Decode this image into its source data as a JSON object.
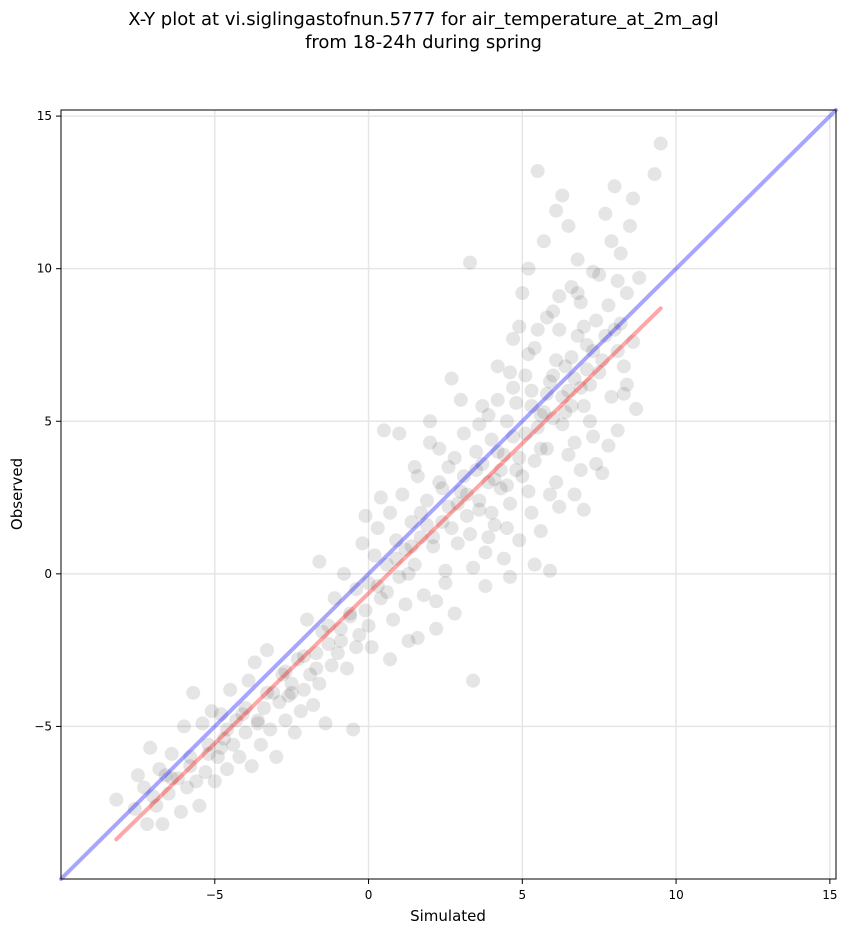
{
  "chart_data": {
    "type": "scatter",
    "title_line1": "X-Y plot at vi.siglingastofnun.5777 for air_temperature_at_2m_agl",
    "title_line2": "from 18-24h during spring",
    "xlabel": "Simulated",
    "ylabel": "Observed",
    "xlim": [
      -10,
      15.2
    ],
    "ylim": [
      -10,
      15.2
    ],
    "xticks": [
      {
        "value": -5,
        "label": "−5"
      },
      {
        "value": 0,
        "label": "0"
      },
      {
        "value": 5,
        "label": "5"
      },
      {
        "value": 10,
        "label": "10"
      },
      {
        "value": 15,
        "label": "15"
      }
    ],
    "yticks": [
      {
        "value": -5,
        "label": "−5"
      },
      {
        "value": 0,
        "label": "0"
      },
      {
        "value": 5,
        "label": "5"
      },
      {
        "value": 10,
        "label": "10"
      },
      {
        "value": 15,
        "label": "15"
      }
    ],
    "grid": true,
    "point_color": "#000000",
    "point_opacity": 0.1,
    "reference_line": {
      "color": "#0000ff",
      "opacity": 0.35,
      "x": [
        -10,
        15.2
      ],
      "y": [
        -10,
        15.2
      ]
    },
    "fit_line": {
      "color": "#ff0000",
      "opacity": 0.35,
      "x": [
        -8.2,
        9.5
      ],
      "y": [
        -8.7,
        8.7
      ]
    },
    "points": [
      [
        -8.2,
        -7.4
      ],
      [
        -7.6,
        -7.7
      ],
      [
        -7.5,
        -6.6
      ],
      [
        -7.2,
        -8.2
      ],
      [
        -7.3,
        -7.0
      ],
      [
        -7.1,
        -5.7
      ],
      [
        -6.9,
        -7.6
      ],
      [
        -6.8,
        -6.4
      ],
      [
        -6.7,
        -8.2
      ],
      [
        -6.6,
        -6.6
      ],
      [
        -6.5,
        -7.2
      ],
      [
        -6.4,
        -5.9
      ],
      [
        -6.2,
        -6.7
      ],
      [
        -6.1,
        -7.8
      ],
      [
        -6.0,
        -5.0
      ],
      [
        -5.9,
        -7.0
      ],
      [
        -5.8,
        -6.3
      ],
      [
        -5.7,
        -3.9
      ],
      [
        -5.6,
        -6.8
      ],
      [
        -5.5,
        -7.6
      ],
      [
        -5.4,
        -4.9
      ],
      [
        -5.3,
        -6.5
      ],
      [
        -5.2,
        -5.9
      ],
      [
        -5.1,
        -4.5
      ],
      [
        -5.0,
        -6.8
      ],
      [
        -4.9,
        -6.0
      ],
      [
        -4.8,
        -4.6
      ],
      [
        -4.7,
        -5.4
      ],
      [
        -4.6,
        -6.4
      ],
      [
        -4.5,
        -3.8
      ],
      [
        -4.4,
        -5.6
      ],
      [
        -4.3,
        -4.8
      ],
      [
        -4.2,
        -6.0
      ],
      [
        -4.1,
        -4.6
      ],
      [
        -4.0,
        -5.2
      ],
      [
        -3.9,
        -3.5
      ],
      [
        -3.8,
        -6.3
      ],
      [
        -3.7,
        -2.9
      ],
      [
        -3.6,
        -4.8
      ],
      [
        -3.5,
        -5.6
      ],
      [
        -3.4,
        -4.4
      ],
      [
        -3.3,
        -2.5
      ],
      [
        -3.2,
        -5.1
      ],
      [
        -3.1,
        -3.9
      ],
      [
        -3.0,
        -6.0
      ],
      [
        -2.9,
        -4.2
      ],
      [
        -2.8,
        -3.3
      ],
      [
        -2.7,
        -4.8
      ],
      [
        -2.6,
        -4.0
      ],
      [
        -2.5,
        -3.6
      ],
      [
        -2.4,
        -5.2
      ],
      [
        -2.3,
        -2.8
      ],
      [
        -2.2,
        -4.5
      ],
      [
        -2.1,
        -3.8
      ],
      [
        -2.0,
        -1.5
      ],
      [
        -1.9,
        -3.3
      ],
      [
        -1.8,
        -4.3
      ],
      [
        -1.7,
        -2.6
      ],
      [
        -1.6,
        -3.6
      ],
      [
        -1.5,
        -1.9
      ],
      [
        -1.4,
        -4.9
      ],
      [
        -1.3,
        -2.3
      ],
      [
        -1.2,
        -3.0
      ],
      [
        -1.1,
        -0.8
      ],
      [
        -1.0,
        -2.6
      ],
      [
        -0.9,
        -1.8
      ],
      [
        -0.8,
        0.0
      ],
      [
        -0.7,
        -3.1
      ],
      [
        -0.6,
        -1.3
      ],
      [
        -0.5,
        -5.1
      ],
      [
        -0.4,
        -0.5
      ],
      [
        -0.3,
        -2.0
      ],
      [
        -0.2,
        1.0
      ],
      [
        -0.1,
        -1.2
      ],
      [
        0.0,
        -0.3
      ],
      [
        0.1,
        -2.4
      ],
      [
        0.2,
        0.6
      ],
      [
        0.3,
        1.5
      ],
      [
        0.4,
        -0.8
      ],
      [
        0.5,
        4.7
      ],
      [
        0.6,
        0.3
      ],
      [
        0.7,
        2.0
      ],
      [
        0.8,
        -1.5
      ],
      [
        0.9,
        1.1
      ],
      [
        1.0,
        -0.1
      ],
      [
        1.1,
        2.6
      ],
      [
        1.2,
        0.8
      ],
      [
        1.3,
        -2.2
      ],
      [
        1.4,
        1.7
      ],
      [
        1.5,
        0.3
      ],
      [
        1.6,
        3.2
      ],
      [
        1.7,
        1.2
      ],
      [
        1.8,
        -0.7
      ],
      [
        1.9,
        2.4
      ],
      [
        2.0,
        4.3
      ],
      [
        2.1,
        0.9
      ],
      [
        2.2,
        -1.8
      ],
      [
        2.3,
        3.0
      ],
      [
        2.4,
        1.7
      ],
      [
        2.5,
        0.1
      ],
      [
        2.6,
        2.2
      ],
      [
        2.7,
        6.4
      ],
      [
        2.8,
        3.8
      ],
      [
        2.9,
        1.0
      ],
      [
        3.0,
        2.7
      ],
      [
        3.1,
        4.6
      ],
      [
        3.2,
        1.9
      ],
      [
        3.3,
        10.2
      ],
      [
        3.4,
        -3.5
      ],
      [
        3.5,
        3.4
      ],
      [
        3.6,
        2.1
      ],
      [
        3.7,
        5.5
      ],
      [
        3.8,
        0.7
      ],
      [
        3.9,
        3.0
      ],
      [
        4.0,
        4.4
      ],
      [
        4.1,
        1.6
      ],
      [
        4.2,
        6.8
      ],
      [
        4.3,
        2.8
      ],
      [
        4.4,
        3.9
      ],
      [
        4.5,
        5.0
      ],
      [
        4.6,
        2.3
      ],
      [
        4.7,
        7.7
      ],
      [
        4.8,
        3.4
      ],
      [
        4.9,
        1.1
      ],
      [
        5.0,
        9.2
      ],
      [
        5.1,
        4.6
      ],
      [
        5.2,
        2.7
      ],
      [
        5.3,
        6.0
      ],
      [
        5.4,
        3.7
      ],
      [
        5.5,
        13.2
      ],
      [
        5.6,
        5.2
      ],
      [
        5.7,
        10.9
      ],
      [
        5.8,
        4.1
      ],
      [
        5.9,
        0.1
      ],
      [
        6.0,
        6.5
      ],
      [
        6.1,
        3.0
      ],
      [
        6.2,
        8.0
      ],
      [
        6.3,
        12.4
      ],
      [
        6.4,
        5.3
      ],
      [
        6.5,
        11.4
      ],
      [
        6.6,
        7.1
      ],
      [
        6.7,
        4.3
      ],
      [
        6.8,
        9.2
      ],
      [
        6.9,
        6.1
      ],
      [
        7.0,
        2.1
      ],
      [
        7.1,
        7.5
      ],
      [
        7.2,
        5.0
      ],
      [
        7.3,
        9.9
      ],
      [
        7.4,
        8.3
      ],
      [
        7.5,
        6.6
      ],
      [
        7.6,
        3.3
      ],
      [
        7.7,
        11.8
      ],
      [
        7.8,
        8.8
      ],
      [
        7.9,
        5.8
      ],
      [
        8.0,
        12.7
      ],
      [
        8.1,
        7.3
      ],
      [
        8.2,
        10.5
      ],
      [
        8.3,
        6.8
      ],
      [
        8.4,
        9.2
      ],
      [
        8.5,
        11.4
      ],
      [
        8.6,
        7.6
      ],
      [
        8.7,
        5.4
      ],
      [
        8.8,
        9.7
      ],
      [
        9.3,
        13.1
      ],
      [
        9.5,
        14.1
      ],
      [
        6.1,
        11.9
      ],
      [
        5.2,
        10.0
      ],
      [
        4.9,
        8.1
      ],
      [
        3.0,
        5.7
      ],
      [
        2.0,
        5.0
      ],
      [
        1.0,
        4.6
      ],
      [
        0.4,
        2.5
      ],
      [
        -0.1,
        1.9
      ],
      [
        -1.6,
        0.4
      ],
      [
        -0.4,
        -2.4
      ],
      [
        0.7,
        -2.8
      ],
      [
        1.6,
        -2.1
      ],
      [
        2.2,
        -0.9
      ],
      [
        2.8,
        -1.3
      ],
      [
        3.8,
        -0.4
      ],
      [
        4.6,
        -0.1
      ],
      [
        5.4,
        0.3
      ],
      [
        6.7,
        2.6
      ],
      [
        7.4,
        3.6
      ],
      [
        8.1,
        4.7
      ],
      [
        8.4,
        6.2
      ],
      [
        7.8,
        4.2
      ],
      [
        6.9,
        3.4
      ],
      [
        6.2,
        2.2
      ],
      [
        5.6,
        1.4
      ],
      [
        4.4,
        0.5
      ],
      [
        3.6,
        2.4
      ],
      [
        4.2,
        4.0
      ],
      [
        4.8,
        5.6
      ],
      [
        5.4,
        7.4
      ],
      [
        6.0,
        8.6
      ],
      [
        6.6,
        9.4
      ],
      [
        7.0,
        8.1
      ],
      [
        7.6,
        7.0
      ],
      [
        8.0,
        8.0
      ],
      [
        5.0,
        3.2
      ],
      [
        5.8,
        5.9
      ],
      [
        6.4,
        6.8
      ],
      [
        6.8,
        7.8
      ],
      [
        7.2,
        6.2
      ],
      [
        5.5,
        4.8
      ],
      [
        4.5,
        2.9
      ],
      [
        3.3,
        1.3
      ],
      [
        2.6,
        3.5
      ],
      [
        1.7,
        2.0
      ],
      [
        3.9,
        5.2
      ],
      [
        4.1,
        3.1
      ],
      [
        4.7,
        4.5
      ],
      [
        5.3,
        5.5
      ],
      [
        5.9,
        6.3
      ],
      [
        6.3,
        4.9
      ],
      [
        6.5,
        6.0
      ],
      [
        7.0,
        5.5
      ],
      [
        7.3,
        7.3
      ],
      [
        5.1,
        6.5
      ],
      [
        4.0,
        2.0
      ],
      [
        3.5,
        4.0
      ],
      [
        3.1,
        3.2
      ],
      [
        2.4,
        2.8
      ],
      [
        2.9,
        2.3
      ],
      [
        1.9,
        1.6
      ],
      [
        1.4,
        0.9
      ],
      [
        0.9,
        0.5
      ],
      [
        0.3,
        -0.4
      ],
      [
        -0.6,
        -1.4
      ],
      [
        -1.3,
        -1.7
      ],
      [
        -2.1,
        -2.7
      ],
      [
        -2.7,
        -3.2
      ],
      [
        -3.3,
        -3.9
      ],
      [
        -4.0,
        -4.4
      ],
      [
        -4.6,
        -5.1
      ],
      [
        -5.2,
        -5.6
      ],
      [
        -5.8,
        -6.0
      ],
      [
        -6.4,
        -6.7
      ],
      [
        -7.0,
        -7.3
      ],
      [
        5.7,
        5.3
      ],
      [
        6.1,
        7.0
      ],
      [
        6.7,
        6.4
      ],
      [
        7.1,
        6.7
      ],
      [
        7.7,
        7.8
      ],
      [
        8.2,
        8.2
      ],
      [
        4.3,
        3.4
      ],
      [
        4.9,
        3.8
      ],
      [
        5.6,
        4.1
      ],
      [
        6.0,
        5.1
      ],
      [
        6.3,
        5.8
      ],
      [
        6.6,
        5.5
      ],
      [
        4.7,
        6.1
      ],
      [
        5.2,
        7.2
      ],
      [
        5.8,
        8.4
      ],
      [
        6.9,
        8.9
      ],
      [
        7.5,
        9.8
      ],
      [
        8.1,
        9.6
      ],
      [
        3.7,
        3.6
      ],
      [
        3.2,
        2.6
      ],
      [
        2.7,
        1.5
      ],
      [
        2.1,
        1.2
      ],
      [
        1.3,
        0.0
      ],
      [
        0.6,
        -0.6
      ],
      [
        0.0,
        -1.7
      ],
      [
        -0.9,
        -2.2
      ],
      [
        -1.7,
        -3.1
      ],
      [
        -2.5,
        -3.9
      ],
      [
        -3.6,
        -4.9
      ],
      [
        -4.8,
        -5.7
      ],
      [
        5.3,
        2.0
      ],
      [
        5.9,
        2.6
      ],
      [
        6.5,
        3.9
      ],
      [
        7.3,
        4.5
      ],
      [
        8.3,
        5.9
      ],
      [
        4.5,
        1.5
      ],
      [
        3.9,
        1.2
      ],
      [
        3.4,
        0.2
      ],
      [
        2.5,
        -0.3
      ],
      [
        1.2,
        -1.0
      ],
      [
        4.2,
        5.7
      ],
      [
        4.6,
        6.6
      ],
      [
        5.5,
        8.0
      ],
      [
        6.2,
        9.1
      ],
      [
        6.8,
        10.3
      ],
      [
        7.9,
        10.9
      ],
      [
        8.6,
        12.3
      ],
      [
        3.6,
        4.9
      ],
      [
        2.3,
        4.1
      ],
      [
        1.5,
        3.5
      ]
    ]
  }
}
